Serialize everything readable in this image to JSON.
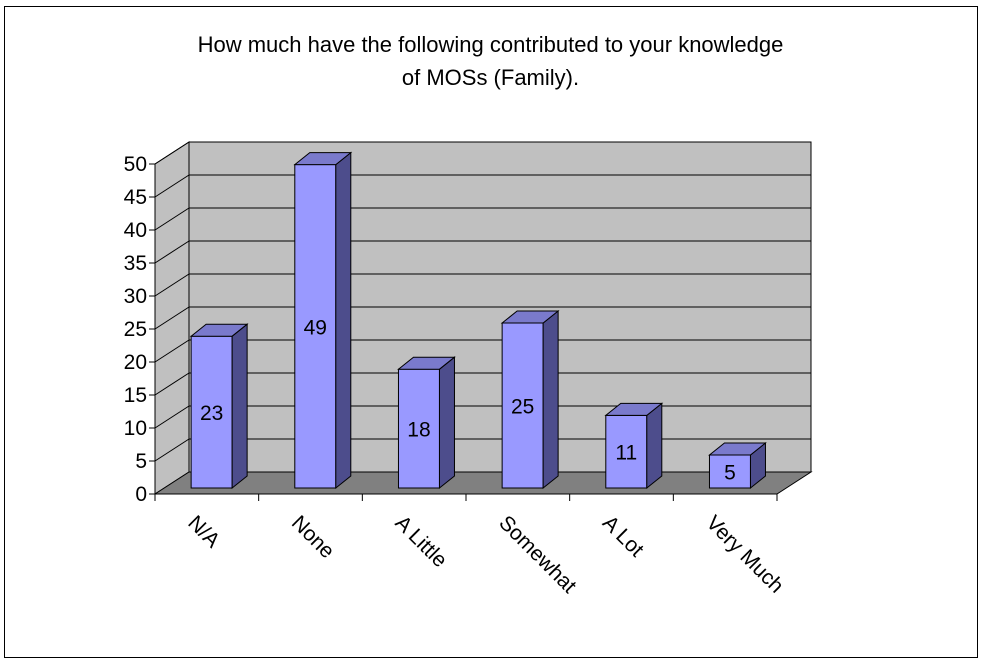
{
  "chart_data": {
    "type": "bar",
    "title_lines": [
      "How much have the following contributed to your knowledge",
      "of MOSs (Family)."
    ],
    "categories": [
      "N/A",
      "None",
      "A Little",
      "Somewhat",
      "A Lot",
      "Very Much"
    ],
    "values": [
      23,
      49,
      18,
      25,
      11,
      5
    ],
    "ylim": [
      0,
      50
    ],
    "ytick_step": 5,
    "grid": true,
    "style": "3d-column",
    "colors": {
      "bar_front": "#9999ff",
      "bar_side": "#4d4d8c",
      "bar_top": "#7a7acc",
      "wall": "#c0c0c0",
      "floor": "#808080",
      "grid": "#000000"
    }
  }
}
